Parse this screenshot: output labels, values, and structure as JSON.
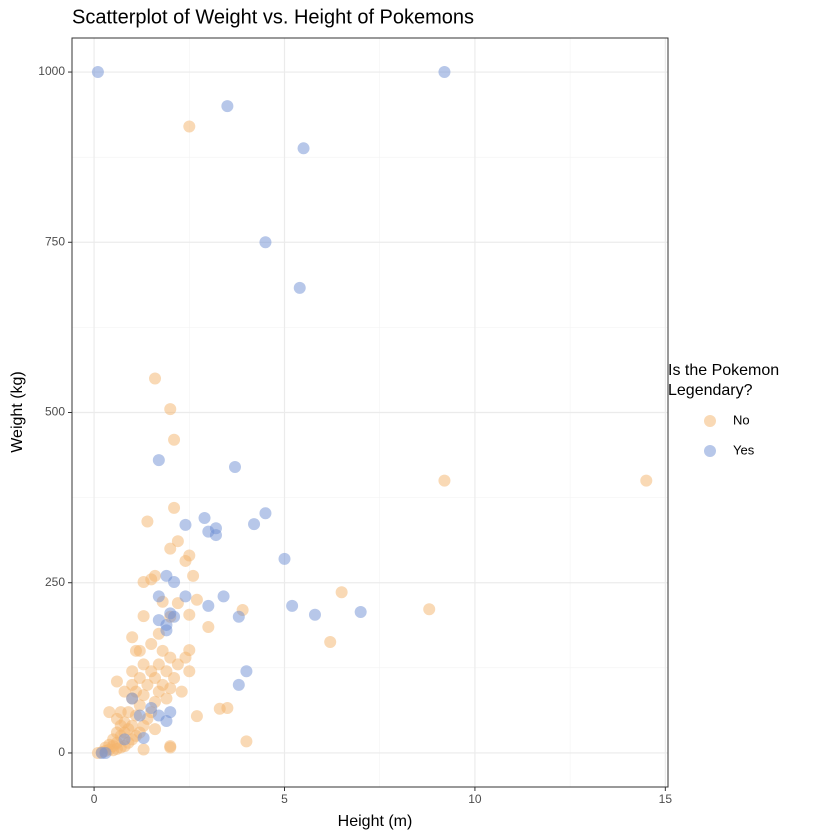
{
  "chart_data": {
    "type": "scatter",
    "title": "Scatterplot of Weight vs. Height of Pokemons",
    "x_label": "Height (m)",
    "y_label": "Weight (kg)",
    "legend_title": "Is the Pokemon Legendary?",
    "legend_position": "right",
    "xlim": [
      -0.58,
      15.07
    ],
    "ylim": [
      -50,
      1050
    ],
    "xticks": [
      0,
      5,
      10,
      15
    ],
    "yticks": [
      0,
      250,
      500,
      750,
      1000
    ],
    "xminor": [
      2.5,
      7.5,
      12.5
    ],
    "yminor": [
      125,
      375,
      625,
      875
    ],
    "grid": true,
    "point_opacity": 0.5,
    "series": [
      {
        "name": "No",
        "color": "#f4b46c",
        "x": [
          2.5,
          1.6,
          2.0,
          2.1,
          9.2,
          14.5,
          2.1,
          1.4,
          2.2,
          2.0,
          2.5,
          2.4,
          2.6,
          1.5,
          1.3,
          6.5,
          2.7,
          3.9,
          8.8,
          2.5,
          1.3,
          6.2,
          3.0,
          1.0,
          2.5,
          3.3,
          3.5,
          2.7,
          4.0,
          2.0,
          0.1,
          0.2,
          0.3,
          0.3,
          0.4,
          0.4,
          0.5,
          0.5,
          0.5,
          0.6,
          0.6,
          0.6,
          0.6,
          0.7,
          0.7,
          0.7,
          0.7,
          0.8,
          0.8,
          0.8,
          0.8,
          0.9,
          0.9,
          0.9,
          1.0,
          1.0,
          1.0,
          1.0,
          1.0,
          1.1,
          1.1,
          1.1,
          1.2,
          1.2,
          1.2,
          1.2,
          1.3,
          1.3,
          1.3,
          1.4,
          1.4,
          1.5,
          1.5,
          1.5,
          1.6,
          1.6,
          1.7,
          1.7,
          1.7,
          1.8,
          1.8,
          1.9,
          1.9,
          2.0,
          2.0,
          2.0,
          2.1,
          2.2,
          2.3,
          2.4,
          2.5,
          1.6,
          1.8,
          2.2,
          0.6,
          1.3,
          2.0,
          0.4,
          1.1,
          1.6
        ],
        "values": [
          920,
          550,
          505,
          460,
          400,
          400,
          360,
          340,
          311,
          300,
          290,
          282,
          260,
          255,
          251,
          236,
          225,
          210,
          211,
          203,
          201,
          163,
          185,
          170,
          151,
          65,
          66,
          54,
          17,
          10,
          0,
          1,
          3,
          8,
          5,
          12,
          4,
          10,
          20,
          6,
          15,
          30,
          50,
          8,
          25,
          40,
          60,
          10,
          30,
          45,
          90,
          15,
          35,
          60,
          20,
          40,
          80,
          100,
          120,
          25,
          55,
          90,
          30,
          70,
          110,
          150,
          40,
          85,
          130,
          50,
          100,
          60,
          120,
          160,
          75,
          110,
          90,
          130,
          175,
          100,
          150,
          80,
          120,
          95,
          140,
          200,
          110,
          130,
          90,
          140,
          120,
          260,
          222,
          220,
          105,
          5,
          8,
          60,
          150,
          35
        ]
      },
      {
        "name": "Yes",
        "color": "#6f8fd4",
        "x": [
          0.1,
          9.2,
          3.5,
          5.5,
          4.5,
          5.4,
          1.7,
          3.7,
          4.5,
          4.2,
          2.9,
          2.4,
          3.2,
          3.0,
          3.2,
          5.0,
          1.9,
          2.1,
          1.7,
          3.4,
          2.4,
          3.0,
          5.2,
          7.0,
          5.8,
          3.8,
          1.7,
          2.1,
          2.0,
          1.9,
          1.9,
          4.0,
          3.8,
          1.0,
          1.5,
          2.0,
          1.2,
          1.7,
          1.9,
          1.3,
          0.2,
          0.3,
          0.8
        ],
        "values": [
          1000,
          1000,
          950,
          888,
          750,
          683,
          430,
          420,
          352,
          336,
          345,
          335,
          330,
          325,
          320,
          285,
          260,
          251,
          230,
          230,
          230,
          216,
          216,
          207,
          203,
          200,
          195,
          200,
          205,
          188,
          180,
          120,
          100,
          80,
          66,
          60,
          55,
          55,
          47,
          22,
          0,
          0,
          20
        ]
      }
    ]
  }
}
